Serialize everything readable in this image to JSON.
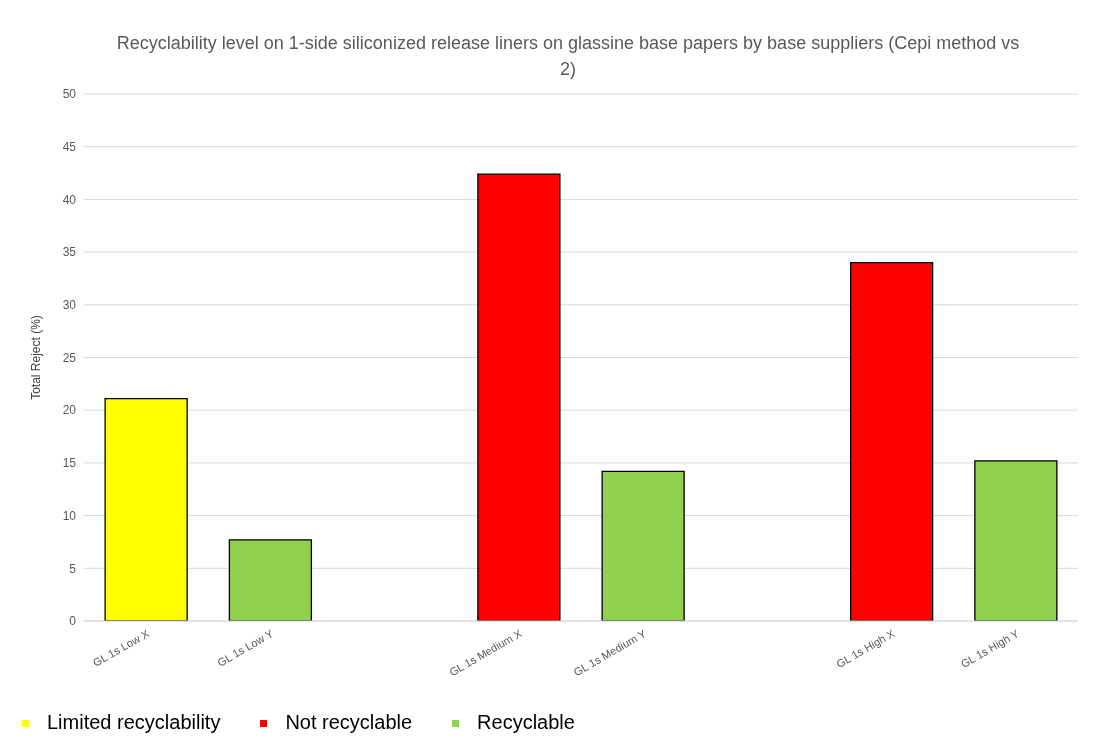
{
  "chart_data": {
    "type": "bar",
    "title": "Recyclability level on 1-side siliconized release liners on glassine base papers by base suppliers (Cepi method vs 2)",
    "ylabel": "Total Reject (%)",
    "categories": [
      "GL 1s Low X",
      "GL 1s Low Y",
      null,
      "GL 1s Medium X",
      "GL 1s Medium Y",
      null,
      "GL 1s High X",
      "GL 1s High Y"
    ],
    "series": [
      {
        "name": "Recyclable",
        "color": "#92d050",
        "values": [
          null,
          7.7,
          null,
          null,
          14.2,
          null,
          null,
          15.2
        ]
      },
      {
        "name": "Limited recyclability",
        "color": "#ffff00",
        "values": [
          21.1,
          null,
          null,
          null,
          null,
          null,
          null,
          null
        ]
      },
      {
        "name": "Not recyclable",
        "color": "#ff0000",
        "values": [
          null,
          null,
          null,
          42.4,
          null,
          null,
          34.0,
          null
        ]
      }
    ],
    "stacked": true,
    "ylim": [
      0,
      50
    ],
    "yticks": [
      0,
      5,
      10,
      15,
      20,
      25,
      30,
      35,
      40,
      45,
      50
    ],
    "grid": "y",
    "legend": "bottom"
  }
}
